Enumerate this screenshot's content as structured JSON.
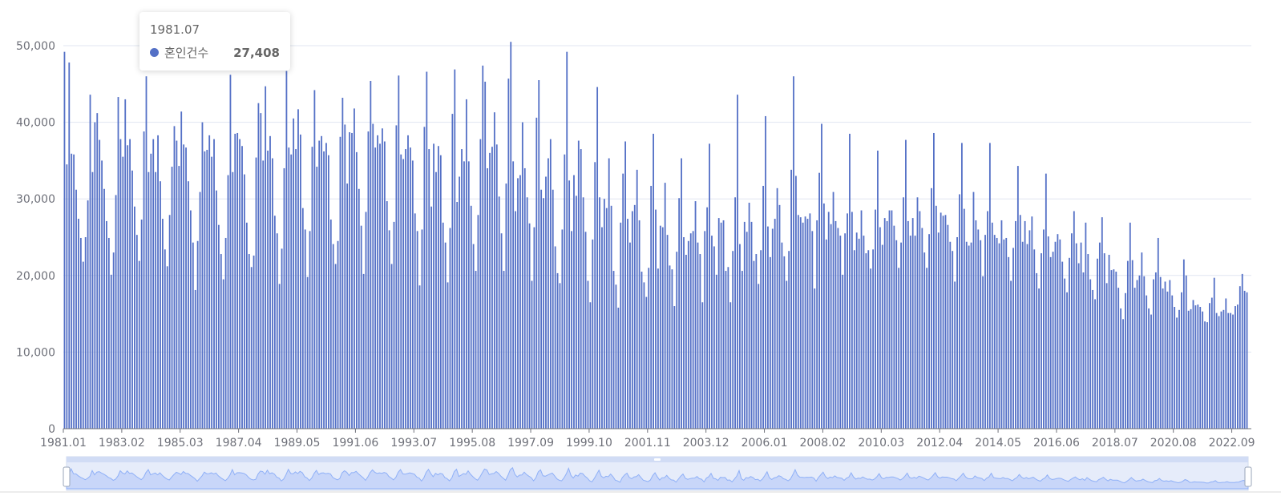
{
  "colors": {
    "bar": "#5470c6",
    "grid": "#e0e6f1",
    "axis": "#6e7079",
    "zoom_fill": "#d1dcf5",
    "zoom_line": "#8fb0f7",
    "zoom_border": "#d2dbee"
  },
  "tooltip": {
    "title": "1981.07",
    "series_name": "혼인건수",
    "value": "27,408"
  },
  "chart_data": {
    "type": "bar",
    "x_start": "1981.01",
    "x_end": "2022.09",
    "series": [
      {
        "name": "혼인건수",
        "values": [
          49200,
          34500,
          47800,
          35900,
          35800,
          31200,
          27408,
          24900,
          21800,
          25000,
          29800,
          43600,
          33500,
          40000,
          41200,
          37700,
          35000,
          31300,
          27100,
          24900,
          20100,
          23000,
          30500,
          43300,
          37800,
          35500,
          43000,
          37000,
          37800,
          33700,
          29000,
          25300,
          21900,
          27300,
          38800,
          46000,
          33500,
          35900,
          37800,
          33500,
          38300,
          32300,
          27400,
          23400,
          21200,
          27900,
          34200,
          39500,
          37600,
          34300,
          41400,
          37100,
          36700,
          32300,
          28500,
          24300,
          18100,
          24500,
          30900,
          40000,
          36200,
          36400,
          38300,
          35500,
          37800,
          31100,
          26600,
          22800,
          19500,
          24900,
          33100,
          46200,
          33500,
          38500,
          38600,
          37800,
          36900,
          33200,
          26900,
          22800,
          21100,
          22600,
          35400,
          42500,
          41200,
          35000,
          44700,
          36300,
          38200,
          35300,
          27800,
          25500,
          18900,
          23500,
          34000,
          46700,
          36700,
          35800,
          40500,
          36500,
          41700,
          38400,
          28800,
          26000,
          19800,
          25800,
          36800,
          44200,
          34200,
          37600,
          38200,
          36200,
          37300,
          35700,
          27300,
          24100,
          21500,
          24500,
          38100,
          43200,
          39700,
          32000,
          38700,
          38600,
          41800,
          36100,
          31300,
          26500,
          20200,
          28300,
          38800,
          45400,
          39800,
          36700,
          38300,
          37200,
          39200,
          37500,
          29700,
          25900,
          21500,
          27000,
          39600,
          46100,
          35800,
          35200,
          36500,
          38300,
          36700,
          35000,
          28100,
          25800,
          18700,
          26000,
          39400,
          46600,
          36500,
          29000,
          37200,
          33500,
          36900,
          35700,
          26900,
          24300,
          19100,
          26200,
          41100,
          46900,
          29600,
          32900,
          36500,
          34900,
          43000,
          34900,
          29100,
          24100,
          20600,
          27900,
          37800,
          47400,
          45300,
          34000,
          36000,
          36800,
          41300,
          37100,
          30300,
          25500,
          20600,
          32000,
          45700,
          50500,
          34900,
          28400,
          32700,
          33100,
          40000,
          34000,
          30200,
          26800,
          19300,
          26300,
          40600,
          45500,
          31200,
          30100,
          32900,
          35300,
          37800,
          31200,
          23800,
          20300,
          19000,
          26000,
          35800,
          49200,
          32400,
          25800,
          33100,
          30400,
          37600,
          36500,
          30200,
          25700,
          19300,
          16500,
          24700,
          34800,
          44600,
          30200,
          26300,
          30000,
          28800,
          35300,
          29100,
          20600,
          18800,
          15800,
          26900,
          33300,
          37500,
          27400,
          24300,
          28400,
          29200,
          33800,
          27200,
          20500,
          19100,
          17200,
          21000,
          31700,
          38500,
          28600,
          20900,
          26500,
          26300,
          32100,
          25300,
          21300,
          20800,
          16000,
          23100,
          30100,
          35300,
          25000,
          22700,
          24500,
          25500,
          25800,
          29700,
          24300,
          22800,
          16500,
          25800,
          28900,
          37200,
          25200,
          23800,
          20100,
          27500,
          26900,
          27200,
          20600,
          21100,
          16500,
          23200,
          30200,
          43600,
          24100,
          20600,
          27000,
          25700,
          29500,
          27000,
          21900,
          22800,
          18900,
          23300,
          31700,
          40800,
          26400,
          22400,
          26100,
          27400,
          31400,
          29200,
          24300,
          22500,
          19300,
          23200,
          33800,
          46000,
          33000,
          27900,
          27600,
          26900,
          27700,
          27400,
          28100,
          25800,
          18300,
          27200,
          33400,
          39800,
          29400,
          24700,
          28300,
          26700,
          30900,
          27100,
          26200,
          25200,
          20100,
          25500,
          28100,
          38500,
          28300,
          23300,
          25600,
          24800,
          28500,
          25200,
          22900,
          23300,
          20900,
          23400,
          28600,
          36300,
          26300,
          24000,
          27500,
          27100,
          28500,
          28500,
          26500,
          24600,
          21000,
          24300,
          30200,
          37700,
          27100,
          25200,
          27500,
          25200,
          30200,
          28400,
          26200,
          23000,
          21000,
          25400,
          31400,
          38600,
          29100,
          25600,
          28200,
          27800,
          27900,
          26600,
          24400,
          23200,
          19200,
          25000,
          30600,
          37300,
          28700,
          24400,
          23900,
          24300,
          30900,
          27200,
          26000,
          24600,
          19900,
          25300,
          28400,
          37300,
          26900,
          25300,
          24900,
          24200,
          27200,
          24700,
          24900,
          22400,
          19300,
          23600,
          27100,
          34300,
          27900,
          24400,
          27100,
          24100,
          25900,
          27700,
          23400,
          20300,
          18300,
          22900,
          26000,
          33300,
          25100,
          22400,
          23100,
          24400,
          25400,
          24700,
          21800,
          19600,
          17800,
          22300,
          25500,
          28400,
          24200,
          21600,
          24300,
          20400,
          26900,
          22800,
          19500,
          18100,
          16900,
          22200,
          24300,
          27600,
          22900,
          19000,
          22700,
          20700,
          20800,
          20500,
          18400,
          15700,
          14300,
          17700,
          21900,
          26900,
          22000,
          18400,
          19400,
          20000,
          23000,
          19900,
          17400,
          15700,
          14900,
          19500,
          20400,
          24900,
          19800,
          18300,
          19200,
          17900,
          19400,
          17400,
          15900,
          14500,
          15500,
          17800,
          22100,
          20000,
          15400,
          15600,
          16800,
          16100,
          16200,
          15900,
          15300,
          14000,
          13900,
          16400,
          17100,
          19700,
          15100,
          14700,
          15300,
          15500,
          17000,
          15100,
          15100,
          14900,
          16000,
          16200,
          18600,
          20200,
          18000,
          17800
        ]
      }
    ],
    "y_ticks": [
      "0",
      "10,000",
      "20,000",
      "30,000",
      "40,000",
      "50,000"
    ],
    "y_tick_values": [
      0,
      10000,
      20000,
      30000,
      40000,
      50000
    ],
    "ylim": [
      0,
      50000
    ],
    "x_tick_labels": [
      "1981.01",
      "1983.02",
      "1985.03",
      "1987.04",
      "1989.05",
      "1991.06",
      "1993.07",
      "1995.08",
      "1997.09",
      "1999.10",
      "2001.11",
      "2003.12",
      "2006.01",
      "2008.02",
      "2010.03",
      "2012.04",
      "2014.05",
      "2016.06",
      "2018.07",
      "2020.08",
      "2022.09"
    ],
    "x_tick_indices": [
      0,
      25,
      50,
      75,
      100,
      125,
      150,
      175,
      200,
      225,
      250,
      275,
      300,
      325,
      350,
      375,
      400,
      425,
      450,
      475,
      500
    ],
    "grid": true,
    "legend": "none",
    "datazoom": {
      "start": 0,
      "end": 100
    }
  }
}
